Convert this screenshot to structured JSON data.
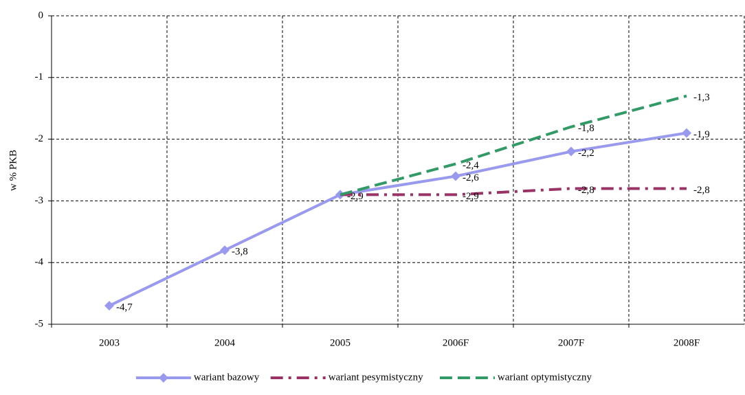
{
  "chart_data": {
    "type": "line",
    "y_label": "w % PKB",
    "categories": [
      "2003",
      "2004",
      "2005",
      "2006F",
      "2007F",
      "2008F"
    ],
    "ylim": [
      -5,
      0
    ],
    "yticks": [
      0,
      -1,
      -2,
      -3,
      -4,
      -5
    ],
    "grid": true,
    "legend": "bottom",
    "series": [
      {
        "name": "wariant bazowy",
        "color": "#9999ee",
        "style": "solid",
        "marker": "diamond",
        "values": [
          -4.7,
          -3.8,
          -2.9,
          -2.6,
          -2.2,
          -1.9
        ],
        "value_labels": [
          "-4,7",
          "-3,8",
          "-2,9",
          "-2,6",
          "-2,2",
          "-1,9"
        ]
      },
      {
        "name": "wariant pesymistyczny",
        "color": "#993366",
        "style": "dashdot",
        "values": [
          null,
          null,
          -2.9,
          -2.9,
          -2.8,
          -2.8
        ],
        "value_labels": [
          null,
          null,
          null,
          "-2,9",
          "-2,8",
          "-2,8"
        ]
      },
      {
        "name": "wariant optymistyczny",
        "color": "#339966",
        "style": "dashed",
        "values": [
          null,
          null,
          -2.9,
          -2.4,
          -1.8,
          -1.3
        ],
        "value_labels": [
          null,
          null,
          null,
          "-2,4",
          "-1,8",
          "-1,3"
        ]
      }
    ]
  }
}
